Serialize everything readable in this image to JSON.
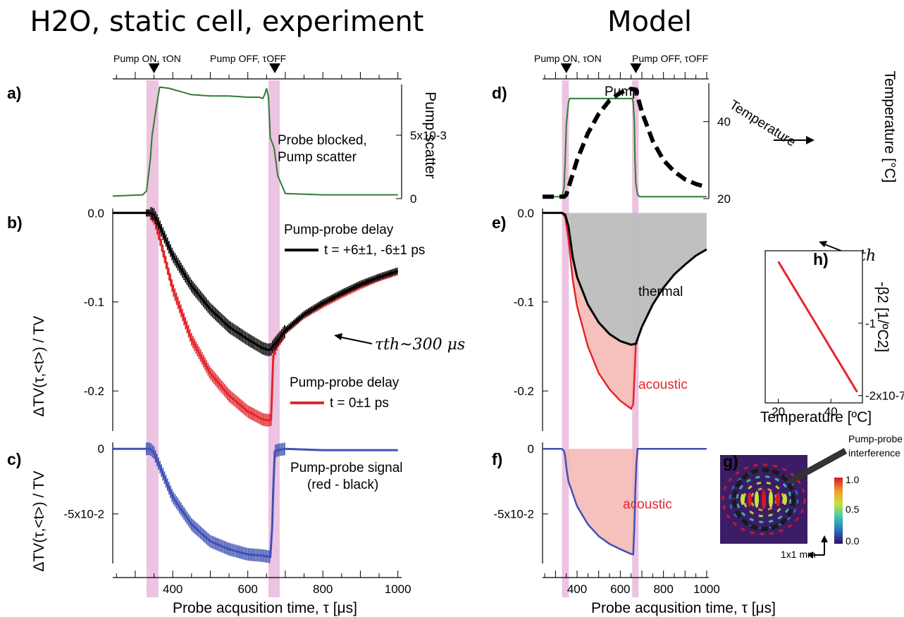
{
  "titles": {
    "left": "H2O, static cell, experiment",
    "right": "Model"
  },
  "markers": {
    "pump_on": "Pump ON, τON",
    "pump_off": "Pump OFF, τOFF",
    "pump_on_tau": 350,
    "pump_off_tau": 672,
    "bands": [
      [
        330,
        362
      ],
      [
        655,
        685
      ]
    ]
  },
  "xaxis": {
    "label": "Probe acqusition time, τ [μs]",
    "range": [
      240,
      1010
    ],
    "ticks": [
      400,
      600,
      800,
      1000
    ]
  },
  "colors": {
    "pump": "#2e7d32",
    "black": "#000000",
    "red": "#e3262b",
    "blue": "#3f51b5",
    "band": "#e9b9dc",
    "gray": "#bdbdbd",
    "pink": "#f5b5b0"
  },
  "chart_data": [
    {
      "id": "a",
      "panel_label": "a)",
      "type": "line",
      "ylabel": "Pump scatter",
      "yticks": [
        "0",
        "5x10-3"
      ],
      "ylim": [
        0,
        0.009
      ],
      "annotation": [
        "Probe blocked,",
        "Pump scatter"
      ],
      "series": [
        {
          "x": [
            240,
            320,
            330,
            340,
            345,
            350,
            355,
            365,
            390,
            450,
            500,
            550,
            600,
            630,
            640,
            645,
            650,
            655,
            660,
            665,
            670,
            680,
            700,
            800,
            900,
            1000
          ],
          "y": [
            0.0002,
            0.0003,
            0.0006,
            0.003,
            0.005,
            0.006,
            0.007,
            0.0088,
            0.0087,
            0.0082,
            0.0081,
            0.0081,
            0.008,
            0.008,
            0.0079,
            0.0082,
            0.0087,
            0.008,
            0.0048,
            0.0044,
            0.004,
            0.0018,
            0.0004,
            0.0003,
            0.0003,
            0.0003
          ]
        }
      ]
    },
    {
      "id": "b",
      "panel_label": "b)",
      "type": "scatter",
      "ylabel": "ΔTV(τ,<t>) / TV",
      "yticks": [
        "0.0",
        "-0.1",
        "-0.2"
      ],
      "ylim": [
        -0.245,
        0.005
      ],
      "legend": [
        "Pump-probe delay",
        "t = +6±1, -6±1 ps",
        "Pump-probe delay",
        "t = 0±1 ps"
      ],
      "annotation": "τth~300 μs",
      "series": [
        {
          "name": "t = 0±1 ps",
          "x": [
            240,
            320,
            340,
            350,
            360,
            400,
            450,
            500,
            550,
            600,
            640,
            655,
            662,
            668,
            680,
            700,
            750,
            800,
            850,
            900,
            950,
            1000
          ],
          "y": [
            0,
            0,
            0,
            -0.006,
            -0.02,
            -0.085,
            -0.142,
            -0.18,
            -0.205,
            -0.223,
            -0.232,
            -0.233,
            -0.232,
            -0.16,
            -0.145,
            -0.133,
            -0.115,
            -0.103,
            -0.092,
            -0.082,
            -0.073,
            -0.066
          ]
        },
        {
          "name": "t = +6±1, -6±1 ps",
          "x": [
            240,
            320,
            340,
            350,
            360,
            400,
            450,
            500,
            550,
            600,
            640,
            655,
            662,
            668,
            680,
            700,
            750,
            800,
            850,
            900,
            950,
            1000
          ],
          "y": [
            0,
            0,
            0,
            -0.002,
            -0.01,
            -0.048,
            -0.082,
            -0.108,
            -0.128,
            -0.142,
            -0.152,
            -0.154,
            -0.153,
            -0.149,
            -0.143,
            -0.132,
            -0.114,
            -0.101,
            -0.09,
            -0.08,
            -0.072,
            -0.065
          ]
        }
      ]
    },
    {
      "id": "c",
      "panel_label": "c)",
      "type": "scatter",
      "ylabel": "ΔTV(τ,<t>) / TV",
      "yticks": [
        "0",
        "-5x10-2"
      ],
      "ylim": [
        -0.088,
        0.005
      ],
      "annotation": [
        "Pump-probe signal",
        "(red - black)"
      ],
      "series": [
        {
          "name": "red - black",
          "x": [
            240,
            320,
            340,
            350,
            360,
            400,
            450,
            500,
            550,
            600,
            640,
            660,
            665,
            668,
            672,
            680,
            700,
            800,
            1000
          ],
          "y": [
            0,
            0,
            0,
            -0.003,
            -0.01,
            -0.037,
            -0.058,
            -0.071,
            -0.077,
            -0.081,
            -0.082,
            -0.083,
            -0.06,
            -0.03,
            -0.002,
            -0.001,
            0,
            -0.001,
            -0.001
          ]
        }
      ]
    },
    {
      "id": "d",
      "panel_label": "d)",
      "type": "line",
      "ylabel": "Temperature [°C]",
      "yticks": [
        "20",
        "40"
      ],
      "ylim": [
        20,
        50
      ],
      "labels": [
        "Pump",
        "Temperature"
      ],
      "series": [
        {
          "name": "Pump",
          "x": [
            240,
            330,
            340,
            345,
            350,
            360,
            365,
            645,
            655,
            660,
            665,
            668,
            672,
            680,
            690,
            1000
          ],
          "y": [
            20.5,
            20.5,
            23,
            30,
            39,
            45,
            46,
            46,
            46,
            45,
            40,
            30,
            24,
            21,
            20.5,
            20.5
          ]
        },
        {
          "name": "Temperature",
          "x": [
            240,
            340,
            350,
            400,
            450,
            500,
            550,
            600,
            650,
            672,
            700,
            750,
            800,
            850,
            900,
            950,
            1000
          ],
          "y": [
            20.5,
            20.5,
            21,
            30,
            37,
            42,
            45.5,
            47.5,
            48.5,
            48.3,
            42.5,
            35,
            30,
            27,
            25,
            23.8,
            23
          ]
        }
      ]
    },
    {
      "id": "e",
      "panel_label": "e)",
      "type": "area",
      "yticks": [
        "0.0",
        "-0.1",
        "-0.2"
      ],
      "ylim": [
        -0.245,
        0.005
      ],
      "labels": [
        "thermal",
        "acoustic"
      ],
      "annotation": "τth",
      "series": [
        {
          "name": "thermal",
          "x": [
            240,
            330,
            345,
            360,
            380,
            400,
            450,
            500,
            550,
            600,
            650,
            672,
            700,
            750,
            800,
            850,
            900,
            950,
            1000
          ],
          "y": [
            0,
            0,
            -0.002,
            -0.015,
            -0.05,
            -0.072,
            -0.103,
            -0.123,
            -0.136,
            -0.144,
            -0.148,
            -0.147,
            -0.128,
            -0.103,
            -0.084,
            -0.069,
            -0.058,
            -0.048,
            -0.041
          ]
        },
        {
          "name": "acoustic",
          "x": [
            330,
            345,
            360,
            380,
            400,
            450,
            500,
            550,
            600,
            650,
            660,
            668,
            672,
            680
          ],
          "y": [
            0,
            -0.005,
            -0.03,
            -0.075,
            -0.105,
            -0.15,
            -0.18,
            -0.198,
            -0.211,
            -0.22,
            -0.215,
            -0.17,
            -0.147,
            -0.146
          ]
        }
      ]
    },
    {
      "id": "h",
      "panel_label": "h)",
      "type": "line",
      "xlabel": "Temperature [ºC]",
      "ylabel": "-β2 [1/ºC2]",
      "xticks": [
        "20",
        "40"
      ],
      "yticks": [
        "-1",
        "-2x10-7"
      ],
      "series": [
        {
          "x": [
            20,
            25,
            30,
            35,
            40,
            45,
            50
          ],
          "y": [
            -0.15,
            -0.45,
            -0.75,
            -1.05,
            -1.35,
            -1.65,
            -1.95
          ]
        }
      ]
    },
    {
      "id": "f",
      "panel_label": "f)",
      "type": "area",
      "yticks": [
        "0",
        "-5x10-2"
      ],
      "ylim": [
        -0.088,
        0.005
      ],
      "labels": [
        "acoustic"
      ],
      "series": [
        {
          "name": "acoustic",
          "x": [
            240,
            330,
            340,
            345,
            350,
            360,
            400,
            450,
            500,
            550,
            600,
            640,
            655,
            660,
            665,
            670,
            675,
            680,
            1000
          ],
          "y": [
            0,
            0,
            -0.002,
            -0.006,
            -0.014,
            -0.025,
            -0.044,
            -0.058,
            -0.067,
            -0.073,
            -0.077,
            -0.08,
            -0.081,
            -0.081,
            -0.06,
            -0.03,
            -0.01,
            0,
            0
          ]
        }
      ]
    }
  ],
  "inset_g": {
    "panel_label": "g)",
    "callout": [
      "Pump-probe",
      "interference"
    ],
    "scale": "1x1 mm",
    "colorbar": [
      "1.0",
      "0.5",
      "0.0"
    ]
  }
}
